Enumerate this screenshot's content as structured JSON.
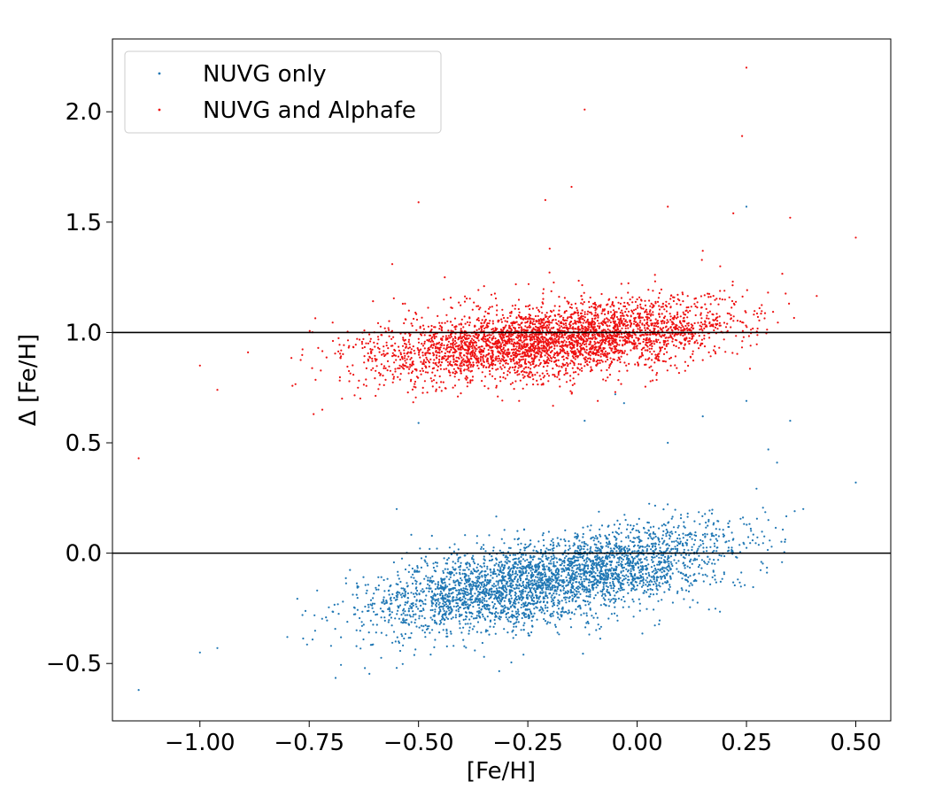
{
  "chart_data": {
    "type": "scatter",
    "xlabel": "[Fe/H]",
    "ylabel": "Δ [Fe/H]",
    "xlim": [
      -1.2,
      0.58
    ],
    "ylim": [
      -0.76,
      2.33
    ],
    "xticks": [
      -1.0,
      -0.75,
      -0.5,
      -0.25,
      0.0,
      0.25,
      0.5
    ],
    "xtick_labels": [
      "−1.00",
      "−0.75",
      "−0.50",
      "−0.25",
      "0.00",
      "0.25",
      "0.50"
    ],
    "yticks": [
      -0.5,
      0.0,
      0.5,
      1.0,
      1.5,
      2.0
    ],
    "ytick_labels": [
      "−0.5",
      "0.0",
      "0.5",
      "1.0",
      "1.5",
      "2.0"
    ],
    "grid": false,
    "legend_position": "top-left",
    "reference_lines": [
      0.0,
      1.0
    ],
    "series": [
      {
        "name": "NUVG only",
        "color": "#1f77b4",
        "trend": {
          "x_range": [
            -0.87,
            0.47
          ],
          "slope": 0.34,
          "intercept": -0.05,
          "scatter": 0.09,
          "n": 3600
        },
        "points": [
          [
            -1.14,
            -0.62
          ],
          [
            -1.0,
            -0.45
          ],
          [
            -0.96,
            -0.43
          ],
          [
            -0.55,
            -0.52
          ],
          [
            -0.5,
            0.59
          ],
          [
            -0.55,
            0.2
          ],
          [
            -0.35,
            -0.47
          ],
          [
            -0.26,
            -0.46
          ],
          [
            0.5,
            0.32
          ],
          [
            0.35,
            0.6
          ],
          [
            0.25,
            0.69
          ],
          [
            0.25,
            1.57
          ],
          [
            -0.05,
            0.72
          ],
          [
            -0.03,
            0.68
          ],
          [
            0.15,
            0.62
          ],
          [
            0.07,
            0.5
          ],
          [
            -0.12,
            0.6
          ],
          [
            0.3,
            0.47
          ],
          [
            0.32,
            0.41
          ],
          [
            0.38,
            0.2
          ],
          [
            -0.42,
            -0.42
          ],
          [
            -0.8,
            -0.38
          ],
          [
            -0.7,
            -0.42
          ]
        ]
      },
      {
        "name": "NUVG and Alphafe",
        "color": "#ee1111",
        "trend": {
          "x_range": [
            -0.87,
            0.47
          ],
          "slope": 0.18,
          "intercept": 1.0,
          "scatter": 0.08,
          "n": 3600
        },
        "points": [
          [
            -1.14,
            0.43
          ],
          [
            -1.0,
            0.85
          ],
          [
            -0.96,
            0.74
          ],
          [
            -0.89,
            0.91
          ],
          [
            -0.72,
            0.65
          ],
          [
            -0.74,
            0.63
          ],
          [
            -0.5,
            1.59
          ],
          [
            -0.56,
            1.31
          ],
          [
            -0.21,
            1.6
          ],
          [
            -0.15,
            1.66
          ],
          [
            -0.12,
            2.01
          ],
          [
            -0.2,
            1.38
          ],
          [
            0.24,
            1.89
          ],
          [
            0.25,
            2.2
          ],
          [
            0.22,
            1.54
          ],
          [
            0.35,
            1.52
          ],
          [
            0.07,
            1.57
          ],
          [
            0.5,
            1.43
          ],
          [
            -0.44,
            1.25
          ],
          [
            -0.35,
            1.21
          ],
          [
            0.15,
            1.37
          ],
          [
            0.19,
            1.3
          ],
          [
            -0.09,
            0.69
          ],
          [
            -0.05,
            0.73
          ],
          [
            -0.41,
            0.71
          ],
          [
            -0.27,
            0.69
          ]
        ]
      }
    ]
  }
}
